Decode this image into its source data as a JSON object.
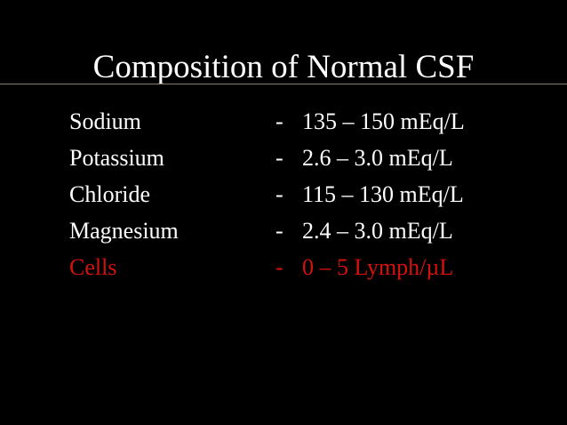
{
  "title": "Composition of Normal CSF",
  "rows": [
    {
      "name": "Sodium",
      "dash": "-",
      "value": "135 – 150 mEq/L"
    },
    {
      "name": "Potassium",
      "dash": "-",
      "value": "2.6 – 3.0 mEq/L"
    },
    {
      "name": "Chloride",
      "dash": "-",
      "value": "115 – 130 mEq/L"
    },
    {
      "name": "Magnesium",
      "dash": "-",
      "value": "2.4 – 3.0 mEq/L"
    },
    {
      "name": "Cells",
      "dash": "-",
      "value": "0 – 5 Lymph/µL"
    }
  ]
}
